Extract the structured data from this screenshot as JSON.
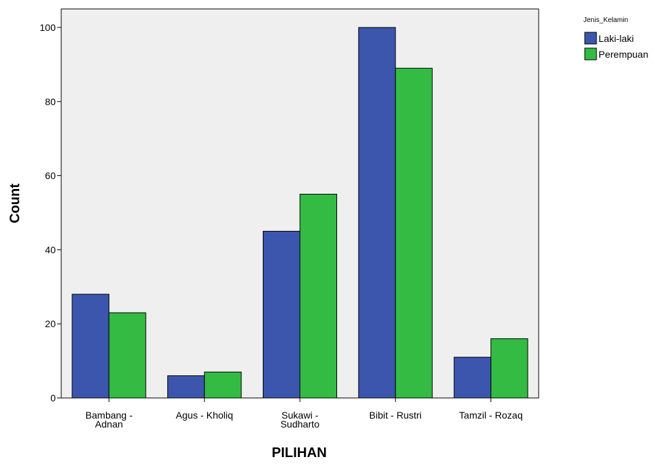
{
  "chart_data": {
    "type": "bar",
    "title": "",
    "xlabel": "PILIHAN",
    "ylabel": "Count",
    "ylim": [
      0,
      105
    ],
    "yticks": [
      0,
      20,
      40,
      60,
      80,
      100
    ],
    "grid": false,
    "plot_background": "#efefef",
    "categories": [
      [
        "Bambang -",
        "Adnan"
      ],
      [
        "Agus - Kholiq"
      ],
      [
        "Sukawi -",
        "Sudharto"
      ],
      [
        "Bibit - Rustri"
      ],
      [
        "Tamzil - Rozaq"
      ]
    ],
    "legend": {
      "title": "Jenis_Kelamin",
      "position": "top-right"
    },
    "series": [
      {
        "name": "Laki-laki",
        "color": "#3c56ad",
        "values": [
          28,
          6,
          45,
          100,
          11
        ]
      },
      {
        "name": "Perempuan",
        "color": "#33bb44",
        "values": [
          23,
          7,
          55,
          89,
          16
        ]
      }
    ]
  }
}
